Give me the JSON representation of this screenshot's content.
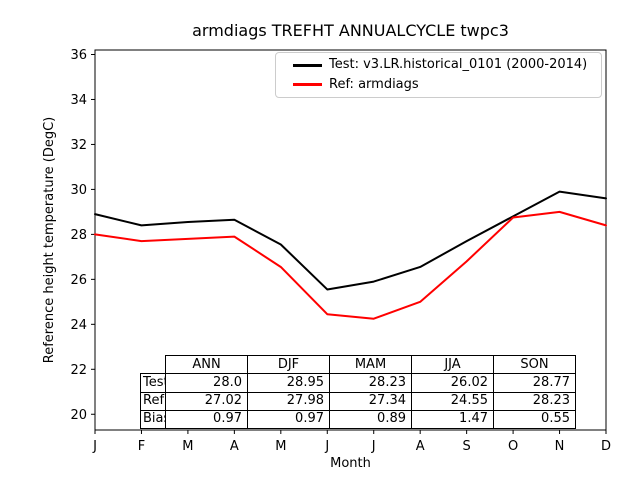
{
  "title": "armdiags TREFHT ANNUALCYCLE twpc3",
  "chart_data": {
    "type": "line",
    "title": "armdiags TREFHT ANNUALCYCLE twpc3",
    "xlabel": "Month",
    "ylabel": "Reference height temperature (DegC)",
    "x": [
      "J",
      "F",
      "M",
      "A",
      "M",
      "J",
      "J",
      "A",
      "S",
      "O",
      "N",
      "D"
    ],
    "ylim": [
      19.3,
      36.2
    ],
    "yticks": [
      20,
      22,
      24,
      26,
      28,
      30,
      32,
      34,
      36
    ],
    "grid": false,
    "legend_position": "upper right",
    "series": [
      {
        "name": "Test: v3.LR.historical_0101 (2000-2014)",
        "color": "#000000",
        "values": [
          28.9,
          28.4,
          28.55,
          28.65,
          27.55,
          25.55,
          25.9,
          26.55,
          27.7,
          28.8,
          29.9,
          29.6
        ]
      },
      {
        "name": "Ref: armdiags",
        "color": "#ff0000",
        "values": [
          28.0,
          27.7,
          27.8,
          27.9,
          26.55,
          24.45,
          24.25,
          25.0,
          26.8,
          28.75,
          29.0,
          28.4
        ]
      }
    ],
    "table": {
      "columns": [
        "ANN",
        "DJF",
        "MAM",
        "JJA",
        "SON"
      ],
      "rows": [
        {
          "label": "Test",
          "values": [
            "28.0",
            "28.95",
            "28.23",
            "26.02",
            "28.77"
          ]
        },
        {
          "label": "Ref",
          "values": [
            "27.02",
            "27.98",
            "27.34",
            "24.55",
            "28.23"
          ]
        },
        {
          "label": "Bias",
          "values": [
            "0.97",
            "0.97",
            "0.89",
            "1.47",
            "0.55"
          ]
        }
      ]
    }
  }
}
